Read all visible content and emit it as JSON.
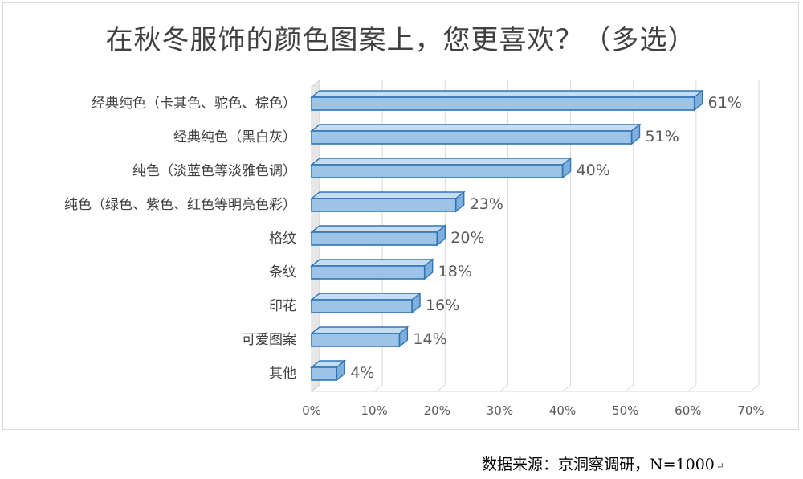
{
  "chart_data": {
    "type": "bar",
    "orientation": "horizontal",
    "title": "在秋冬服饰的颜色图案上，您更喜欢？（多选）",
    "categories": [
      "经典纯色（卡其色、驼色、棕色）",
      "经典纯色（黑白灰）",
      "纯色（淡蓝色等淡雅色调）",
      "纯色（绿色、紫色、红色等明亮色彩）",
      "格纹",
      "条纹",
      "印花",
      "可爱图案",
      "其他"
    ],
    "values": [
      61,
      51,
      40,
      23,
      20,
      18,
      16,
      14,
      4
    ],
    "value_labels": [
      "61%",
      "51%",
      "40%",
      "23%",
      "20%",
      "18%",
      "16%",
      "14%",
      "4%"
    ],
    "xlim": [
      0,
      70
    ],
    "xticks": [
      0,
      10,
      20,
      30,
      40,
      50,
      60,
      70
    ],
    "xtick_labels": [
      "0%",
      "10%",
      "20%",
      "30%",
      "40%",
      "50%",
      "60%",
      "70%"
    ],
    "grid": true,
    "style": "3d",
    "bar_color": "#9dc3e6",
    "bar_edge_color": "#2e75b6"
  },
  "source_note": "数据来源：京洞察调研，N=1000",
  "return_mark": "↵"
}
